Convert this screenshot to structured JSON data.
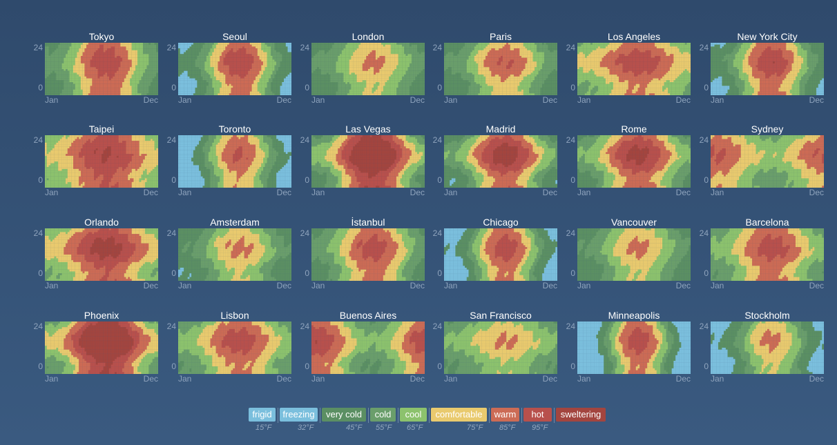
{
  "chart_data": {
    "type": "heatmap",
    "x_axis": {
      "start_label": "Jan",
      "end_label": "Dec",
      "range": [
        1,
        12
      ]
    },
    "y_axis": {
      "labels": [
        "24",
        "0"
      ],
      "range": [
        0,
        24
      ]
    },
    "columns": 6,
    "categories": [
      {
        "label": "frigid",
        "color": "#7bbfdd"
      },
      {
        "label": "freezing",
        "color": "#7bbfdd"
      },
      {
        "label": "very cold",
        "color": "#5b8f63"
      },
      {
        "label": "cold",
        "color": "#6a9e6b"
      },
      {
        "label": "cool",
        "color": "#8cc26d"
      },
      {
        "label": "comfortable",
        "color": "#e9ca6e"
      },
      {
        "label": "warm",
        "color": "#cc6b55"
      },
      {
        "label": "hot",
        "color": "#b8504c"
      },
      {
        "label": "sweltering",
        "color": "#a3453f"
      }
    ],
    "thresholds": [
      "15°F",
      "32°F",
      "45°F",
      "55°F",
      "65°F",
      "75°F",
      "85°F",
      "95°F"
    ],
    "cities": [
      {
        "name": "Tokyo",
        "summer_peak": 86,
        "winter": 44,
        "diurnal": 10
      },
      {
        "name": "Seoul",
        "summer_peak": 86,
        "winter": 30,
        "diurnal": 14
      },
      {
        "name": "London",
        "summer_peak": 72,
        "winter": 42,
        "diurnal": 12
      },
      {
        "name": "Paris",
        "summer_peak": 78,
        "winter": 41,
        "diurnal": 14
      },
      {
        "name": "Los Angeles",
        "summer_peak": 84,
        "winter": 60,
        "diurnal": 16
      },
      {
        "name": "New York City",
        "summer_peak": 86,
        "winter": 34,
        "diurnal": 14
      },
      {
        "name": "Taipei",
        "summer_peak": 91,
        "winter": 62,
        "diurnal": 10
      },
      {
        "name": "Toronto",
        "summer_peak": 80,
        "winter": 22,
        "diurnal": 14
      },
      {
        "name": "Las Vegas",
        "summer_peak": 104,
        "winter": 50,
        "diurnal": 22
      },
      {
        "name": "Madrid",
        "summer_peak": 92,
        "winter": 43,
        "diurnal": 22
      },
      {
        "name": "Rome",
        "summer_peak": 90,
        "winter": 48,
        "diurnal": 18
      },
      {
        "name": "Sydney",
        "summer_peak": 80,
        "winter": 56,
        "diurnal": 14
      },
      {
        "name": "Orlando",
        "summer_peak": 92,
        "winter": 62,
        "diurnal": 16
      },
      {
        "name": "Amsterdam",
        "summer_peak": 72,
        "winter": 38,
        "diurnal": 12
      },
      {
        "name": "İstanbul",
        "summer_peak": 84,
        "winter": 44,
        "diurnal": 12
      },
      {
        "name": "Chicago",
        "summer_peak": 84,
        "winter": 24,
        "diurnal": 14
      },
      {
        "name": "Vancouver",
        "summer_peak": 72,
        "winter": 40,
        "diurnal": 12
      },
      {
        "name": "Barcelona",
        "summer_peak": 84,
        "winter": 52,
        "diurnal": 12
      },
      {
        "name": "Phoenix",
        "summer_peak": 106,
        "winter": 58,
        "diurnal": 22
      },
      {
        "name": "Lisbon",
        "summer_peak": 84,
        "winter": 52,
        "diurnal": 14
      },
      {
        "name": "Buenos Aires",
        "summer_peak": 86,
        "winter": 50,
        "diurnal": 14
      },
      {
        "name": "San Francisco",
        "summer_peak": 70,
        "winter": 50,
        "diurnal": 14
      },
      {
        "name": "Minneapolis",
        "summer_peak": 84,
        "winter": 14,
        "diurnal": 14
      },
      {
        "name": "Stockholm",
        "summer_peak": 72,
        "winter": 26,
        "diurnal": 12
      }
    ]
  }
}
